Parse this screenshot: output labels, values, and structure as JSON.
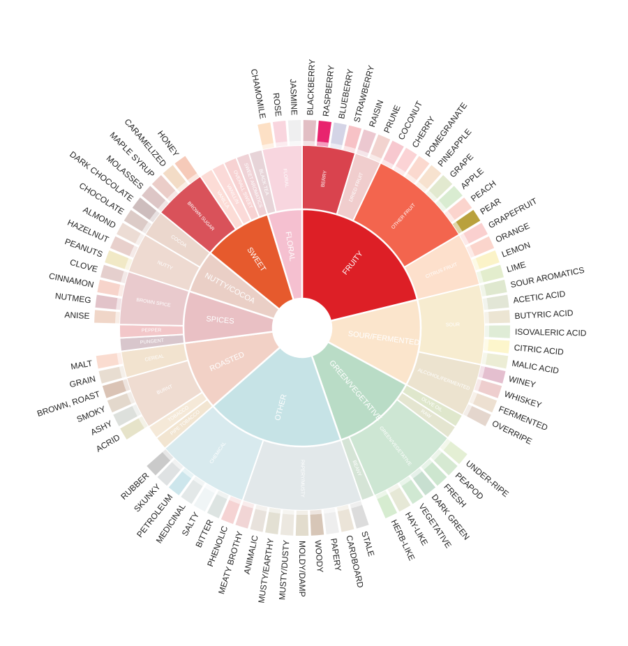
{
  "wheel": {
    "categories": [
      {
        "label": "FRUITY",
        "color": "#dd1f26",
        "subs": [
          {
            "label": "BERRY",
            "color": "#d9434e",
            "items": [
              {
                "label": "BLACKBERRY",
                "color": "#e2bec4"
              },
              {
                "label": "RASPBERRY",
                "color": "#e8246e"
              },
              {
                "label": "BLUEBERRY",
                "color": "#d4d4e6"
              },
              {
                "label": "STRAWBERRY",
                "color": "#f7c2c6"
              }
            ]
          },
          {
            "label": "DRIED FRUIT",
            "color": "#f0cdcd",
            "items": [
              {
                "label": "RAISIN",
                "color": "#ecc8d0"
              },
              {
                "label": "PRUNE",
                "color": "#f2d3cf"
              }
            ]
          },
          {
            "label": "OTHER FRUIT",
            "color": "#f3654e",
            "items": [
              {
                "label": "COCONUT",
                "color": "#f7c8cf"
              },
              {
                "label": "CHERRY",
                "color": "#fbd3d5"
              },
              {
                "label": "POMEGRANATE",
                "color": "#fbd9cf"
              },
              {
                "label": "PINEAPPLE",
                "color": "#f7e2cf"
              },
              {
                "label": "GRAPE",
                "color": "#e2e9cf"
              },
              {
                "label": "APPLE",
                "color": "#d9ecd1"
              },
              {
                "label": "PEACH",
                "color": "#fbd4cd"
              },
              {
                "label": "PEAR",
                "color": "#b9a13d"
              }
            ]
          },
          {
            "label": "CITRUS FRUIT",
            "color": "#fde0cc",
            "items": [
              {
                "label": "GRAPEFRUIT",
                "color": "#fad0cf"
              },
              {
                "label": "ORANGE",
                "color": "#fbd5cc"
              },
              {
                "label": "LEMON",
                "color": "#fbf3c8"
              },
              {
                "label": "LIME",
                "color": "#e3edcd"
              }
            ]
          }
        ]
      },
      {
        "label": "SOUR/FERMENTED",
        "color": "#fbe5cc",
        "subs": [
          {
            "label": "SOUR",
            "color": "#f7ecd0",
            "items": [
              {
                "label": "SOUR AROMATICS",
                "color": "#dfe8cf"
              },
              {
                "label": "ACETIC ACID",
                "color": "#e2e6d6"
              },
              {
                "label": "BUTYRIC ACID",
                "color": "#ece5d3"
              },
              {
                "label": "ISOVALERIC ACID",
                "color": "#dfecd6"
              },
              {
                "label": "CITRIC ACID",
                "color": "#fdf6cc"
              },
              {
                "label": "MALIC ACID",
                "color": "#ecedd5"
              }
            ]
          },
          {
            "label": "ALCOHOL/FERMENTED",
            "color": "#ece3cf",
            "items": [
              {
                "label": "WINEY",
                "color": "#e4bfcf"
              },
              {
                "label": "WHISKEY",
                "color": "#eecece"
              },
              {
                "label": "FERMENTED",
                "color": "#ede0d1"
              },
              {
                "label": "OVERRIPE",
                "color": "#e4d6cd"
              }
            ]
          }
        ]
      },
      {
        "label": "GREEN/VEGETATIVE",
        "color": "#b9dcc6",
        "subs": [
          {
            "label": "OLIVE OIL",
            "color": "#dfe7cc",
            "items": []
          },
          {
            "label": "RAW",
            "color": "#e4e5d0",
            "items": []
          },
          {
            "label": "GREEN/VEGETATIVE",
            "color": "#cde6d3",
            "items": [
              {
                "label": "UNDER-RIPE",
                "color": "#e4efd4"
              },
              {
                "label": "PEAPOD",
                "color": "#d6e9d2"
              },
              {
                "label": "FRESH",
                "color": "#cde6cf"
              },
              {
                "label": "DARK GREEN",
                "color": "#c7dfd0"
              },
              {
                "label": "VEGETATIVE",
                "color": "#d0e8d2"
              },
              {
                "label": "HAY-LIKE",
                "color": "#e6e8d6"
              },
              {
                "label": "HERB-LIKE",
                "color": "#d6ecd0"
              }
            ]
          },
          {
            "label": "BEANY",
            "color": "#d5e4d6",
            "items": []
          }
        ]
      },
      {
        "label": "OTHER",
        "color": "#c6e3e6",
        "subs": [
          {
            "label": "PAPERY/MUSTY",
            "color": "#e2e8ea",
            "items": [
              {
                "label": "STALE",
                "color": "#dcdcdc"
              },
              {
                "label": "CARDBOARD",
                "color": "#ebe4d8"
              },
              {
                "label": "PAPERY",
                "color": "#eeeeee"
              },
              {
                "label": "WOODY",
                "color": "#d7c6b7"
              },
              {
                "label": "MOLDY/DAMP",
                "color": "#e2dccd"
              },
              {
                "label": "MUSTY/DUSTY",
                "color": "#ece8e0"
              },
              {
                "label": "MUSTY/EARTHY",
                "color": "#e3e0d3"
              },
              {
                "label": "ANIMALIC",
                "color": "#e8e2dc"
              },
              {
                "label": "MEATY BROTHY",
                "color": "#f1d5d5"
              }
            ]
          },
          {
            "label": "CHEMICAL",
            "color": "#d8eaee",
            "items": [
              {
                "label": "PHENOLIC",
                "color": "#f5d3d3"
              },
              {
                "label": "BITTER",
                "color": "#dde4e2"
              },
              {
                "label": "SALTY",
                "color": "#f0f5f6"
              },
              {
                "label": "MEDICINAL",
                "color": "#e3e8e8"
              },
              {
                "label": "PETROLEUM",
                "color": "#cde6ec"
              },
              {
                "label": "SKUNKY",
                "color": "#dfe2e3"
              },
              {
                "label": "RUBBER",
                "color": "#cacaca"
              }
            ]
          }
        ]
      },
      {
        "label": "ROASTED",
        "color": "#f2d1c6",
        "subs": [
          {
            "label": "PIPE TOBACCO",
            "color": "#f2e5d1",
            "items": []
          },
          {
            "label": "TOBACCO",
            "color": "#f5e9d8",
            "items": []
          },
          {
            "label": "BURNT",
            "color": "#efdcd1",
            "items": [
              {
                "label": "ACRID",
                "color": "#e6e3c9"
              },
              {
                "label": "ASHY",
                "color": "#dde0dc"
              },
              {
                "label": "SMOKY",
                "color": "#e3d8cc"
              },
              {
                "label": "BROWN, ROAST",
                "color": "#dac3b5"
              }
            ]
          },
          {
            "label": "CEREAL",
            "color": "#f2e3cf",
            "items": [
              {
                "label": "GRAIN",
                "color": "#e8ddd1"
              },
              {
                "label": "MALT",
                "color": "#fadcd0"
              }
            ]
          }
        ]
      },
      {
        "label": "SPICES",
        "color": "#e9c0c4",
        "subs": [
          {
            "label": "PUNGENT",
            "color": "#d8c6cc",
            "items": []
          },
          {
            "label": "PEPPER",
            "color": "#f2c7c9",
            "items": []
          },
          {
            "label": "BROWN SPICE",
            "color": "#e9cacd",
            "items": [
              {
                "label": "ANISE",
                "color": "#f0d6c8"
              },
              {
                "label": "NUTMEG",
                "color": "#e2c3c9"
              },
              {
                "label": "CINNAMON",
                "color": "#f7d4cb"
              },
              {
                "label": "CLOVE",
                "color": "#e5cfcd"
              }
            ]
          }
        ]
      },
      {
        "label": "NUTTY/COCOA",
        "color": "#eacfc6",
        "subs": [
          {
            "label": "NUTTY",
            "color": "#eedad1",
            "items": [
              {
                "label": "PEANUTS",
                "color": "#f1e9c6"
              },
              {
                "label": "HAZELNUT",
                "color": "#e8d0cc"
              },
              {
                "label": "ALMOND",
                "color": "#ecdcd4"
              }
            ]
          },
          {
            "label": "COCOA",
            "color": "#ebd7cd",
            "items": [
              {
                "label": "CHOCOLATE",
                "color": "#dccbc7"
              },
              {
                "label": "DARK CHOCOLATE",
                "color": "#cdbdbd"
              }
            ]
          }
        ]
      },
      {
        "label": "SWEET",
        "color": "#e65a2d",
        "subs": [
          {
            "label": "BROWN SUGAR",
            "color": "#d9525a",
            "items": [
              {
                "label": "MOLASSES",
                "color": "#ddc6c6"
              },
              {
                "label": "MAPLE SYRUP",
                "color": "#ebcdc8"
              },
              {
                "label": "CARAMELIZED",
                "color": "#f3dcc6"
              },
              {
                "label": "HONEY",
                "color": "#f6cab9"
              }
            ]
          },
          {
            "label": "VANILLA",
            "color": "#fcdcd6",
            "items": []
          },
          {
            "label": "VANILLIN",
            "color": "#fbdad8",
            "items": []
          },
          {
            "label": "OVERALL SWEET",
            "color": "#f7d2d2",
            "items": []
          },
          {
            "label": "SWEET AROMATICS",
            "color": "#efd2d6",
            "items": []
          }
        ]
      },
      {
        "label": "FLORAL",
        "color": "#f5c0d0",
        "subs": [
          {
            "label": "BLACK TEA",
            "color": "#e7d4d8",
            "items": []
          },
          {
            "label": "FLORAL",
            "color": "#f8d6df",
            "items": [
              {
                "label": "CHAMOMILE",
                "color": "#fde0c5"
              },
              {
                "label": "ROSE",
                "color": "#f9d5de"
              },
              {
                "label": "JASMINE",
                "color": "#efeff0"
              }
            ]
          }
        ]
      }
    ]
  }
}
